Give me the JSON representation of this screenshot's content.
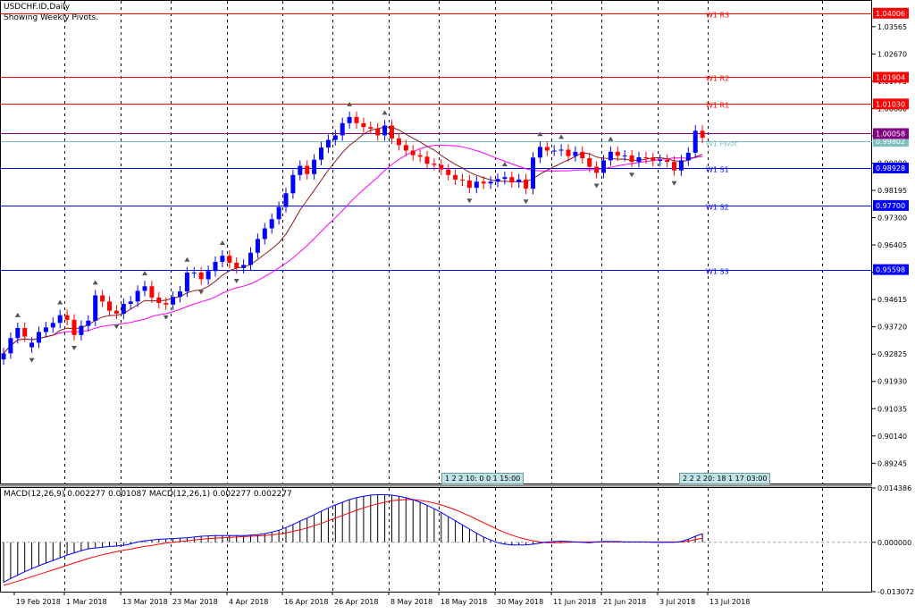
{
  "window": {
    "symbol_title": "USDCHF.ID,Daily",
    "subtitle": "Showing Weekly Pivots."
  },
  "chart_data": [
    {
      "type": "candlestick",
      "symbol": "USDCHF.ID",
      "timeframe": "Daily",
      "ylim": [
        0.8858,
        1.0441
      ],
      "y_ticks": [
        "1.03565",
        "1.02670",
        "1.01775",
        "1.00880",
        "0.99985",
        "0.99090",
        "0.98195",
        "0.97300",
        "0.96405",
        "0.95510",
        "0.94615",
        "0.93720",
        "0.92825",
        "0.91930",
        "0.91035",
        "0.90140",
        "0.89245"
      ],
      "x_ticks": [
        "19 Feb 2018",
        "1 Mar 2018",
        "13 Mar 2018",
        "23 Mar 2018",
        "4 Apr 2018",
        "16 Apr 2018",
        "26 Apr 2018",
        "8 May 2018",
        "18 May 2018",
        "30 May 2018",
        "11 Jun 2018",
        "21 Jun 2018",
        "3 Jul 2018",
        "13 Jul 2018"
      ],
      "grid": true,
      "colors": {
        "bull": "#0000ff",
        "bear": "#ff0000",
        "ma_fast": "#8b1a1a",
        "ma_slow": "#ff00ff"
      },
      "pivots": [
        {
          "label": "W1 R3",
          "value": 1.04006,
          "tag": "1.04006",
          "color": "#ff0000"
        },
        {
          "label": "W1 R2",
          "value": 1.01904,
          "tag": "1.01904",
          "color": "#ff0000"
        },
        {
          "label": "W1 R1",
          "value": 1.0103,
          "tag": "1.01030",
          "color": "#ff0000"
        },
        {
          "label": "W1 Pivot",
          "value": 0.99802,
          "tag": "0.99802",
          "color": "#7fbfbf"
        },
        {
          "label": "W1 S1",
          "value": 0.98928,
          "tag": "0.98928",
          "color": "#0000ff"
        },
        {
          "label": "W1 S2",
          "value": 0.977,
          "tag": "0.97700",
          "color": "#0000ff"
        },
        {
          "label": "W1 S3",
          "value": 0.95598,
          "tag": "0.95598",
          "color": "#0000ff"
        }
      ],
      "current_price": {
        "value": 1.00058,
        "tag": "1.00058",
        "color": "#800080"
      },
      "close": [
        0.9285,
        0.9335,
        0.9368,
        0.934,
        0.932,
        0.9355,
        0.937,
        0.9385,
        0.941,
        0.9395,
        0.9345,
        0.9375,
        0.9392,
        0.9475,
        0.9455,
        0.9425,
        0.9415,
        0.9447,
        0.9455,
        0.949,
        0.9505,
        0.9468,
        0.945,
        0.9445,
        0.947,
        0.9488,
        0.955,
        0.955,
        0.9528,
        0.9555,
        0.9585,
        0.9605,
        0.9582,
        0.9565,
        0.9575,
        0.9615,
        0.966,
        0.9695,
        0.9725,
        0.9765,
        0.981,
        0.987,
        0.99,
        0.9873,
        0.992,
        0.996,
        0.9985,
        1.0,
        1.004,
        1.006,
        1.004,
        1.0027,
        1.0022,
        1.0,
        1.0032,
        0.999,
        0.9968,
        0.995,
        0.9935,
        0.993,
        0.9907,
        0.9903,
        0.9888,
        0.987,
        0.9855,
        0.9852,
        0.9828,
        0.9848,
        0.9842,
        0.9848,
        0.9857,
        0.9863,
        0.9846,
        0.9855,
        0.9825,
        0.9927,
        0.9962,
        0.995,
        0.995,
        0.9953,
        0.9932,
        0.9946,
        0.9925,
        0.9897,
        0.9877,
        0.9918,
        0.9946,
        0.9933,
        0.9934,
        0.9913,
        0.9928,
        0.9925,
        0.9916,
        0.9919,
        0.9913,
        0.9885,
        0.9918,
        0.9943,
        1.0015,
        0.9992
      ],
      "bar_colors": [
        "bull",
        "bull",
        "bull",
        "bear",
        "bull",
        "bull",
        "bull",
        "bull",
        "bull",
        "bear",
        "bear",
        "bull",
        "bull",
        "bull",
        "bear",
        "bear",
        "bear",
        "bull",
        "bull",
        "bull",
        "bull",
        "bear",
        "bear",
        "bear",
        "bull",
        "bull",
        "bull",
        "bull",
        "bear",
        "bull",
        "bull",
        "bull",
        "bear",
        "bear",
        "bull",
        "bull",
        "bull",
        "bull",
        "bull",
        "bull",
        "bull",
        "bull",
        "bull",
        "bear",
        "bull",
        "bull",
        "bull",
        "bull",
        "bull",
        "bull",
        "bear",
        "bear",
        "bear",
        "bear",
        "bull",
        "bear",
        "bear",
        "bear",
        "bear",
        "bear",
        "bear",
        "bear",
        "bear",
        "bear",
        "bear",
        "bear",
        "bear",
        "bull",
        "bear",
        "bull",
        "bull",
        "bull",
        "bear",
        "bull",
        "bear",
        "bull",
        "bull",
        "bear",
        "bull",
        "bull",
        "bear",
        "bull",
        "bear",
        "bear",
        "bear",
        "bull",
        "bull",
        "bear",
        "bull",
        "bear",
        "bull",
        "bear",
        "bear",
        "bull",
        "bear",
        "bear",
        "bull",
        "bull",
        "bull",
        "bear"
      ],
      "session_label_1": "1 2 2 10: 0 0 1 15:00",
      "session_label_2": "2 2 2 20: 18 1 17 03:00"
    },
    {
      "type": "line",
      "title": "MACD(12,26,9) 0.002277 0.001087 MACD(12,26,1) 0.002277 0.002277",
      "ylim": [
        -0.013072,
        0.014386
      ],
      "y_ticks": [
        "0.014386",
        "0.000000",
        "-0.013072"
      ],
      "series": [
        {
          "name": "MACD(12,26,9)",
          "role": "histogram",
          "color": "#000000",
          "values": [
            -0.0106,
            -0.0096,
            -0.0087,
            -0.0078,
            -0.007,
            -0.0062,
            -0.0055,
            -0.0048,
            -0.0041,
            -0.0034,
            -0.0028,
            -0.0022,
            -0.0017,
            -0.0015,
            -0.0013,
            -0.0011,
            -0.001,
            -0.0008,
            -0.0004,
            0.0001,
            0.0004,
            0.0006,
            0.0008,
            0.0009,
            0.001,
            0.0011,
            0.0012,
            0.0014,
            0.0016,
            0.0017,
            0.0018,
            0.0018,
            0.0018,
            0.0018,
            0.0018,
            0.0019,
            0.002,
            0.0023,
            0.0027,
            0.0032,
            0.0039,
            0.0047,
            0.0056,
            0.0064,
            0.0073,
            0.0082,
            0.0091,
            0.0099,
            0.0106,
            0.0113,
            0.0118,
            0.0122,
            0.0125,
            0.0126,
            0.0126,
            0.0125,
            0.0122,
            0.0118,
            0.0113,
            0.0106,
            0.0098,
            0.0089,
            0.0079,
            0.0068,
            0.0057,
            0.0046,
            0.0035,
            0.0024,
            0.0014,
            0.0006,
            -0.0001,
            -0.0005,
            -0.0007,
            -0.0007,
            -0.0007,
            -0.0005,
            -0.0002,
            0.0001,
            0.0002,
            0.0003,
            0.0002,
            0.0001,
            0.0,
            -0.0001,
            0.0001,
            0.0002,
            0.0002,
            0.0002,
            0.0001,
            0.0001,
            0.0001,
            0.0001,
            0.0,
            0.0,
            0.0,
            0.0,
            0.0002,
            0.0008,
            0.0016,
            0.0023
          ]
        },
        {
          "name": "MACD(12,26,1)",
          "role": "line",
          "color": "#0000ff",
          "values": [
            -0.0106,
            -0.0096,
            -0.0087,
            -0.0078,
            -0.007,
            -0.0062,
            -0.0055,
            -0.0048,
            -0.0041,
            -0.0034,
            -0.0028,
            -0.0022,
            -0.0017,
            -0.0015,
            -0.0013,
            -0.0011,
            -0.001,
            -0.0008,
            -0.0004,
            0.0001,
            0.0004,
            0.0006,
            0.0008,
            0.0009,
            0.001,
            0.0011,
            0.0012,
            0.0014,
            0.0016,
            0.0017,
            0.0018,
            0.0018,
            0.0018,
            0.0018,
            0.0018,
            0.0019,
            0.002,
            0.0023,
            0.0027,
            0.0032,
            0.0039,
            0.0047,
            0.0056,
            0.0064,
            0.0073,
            0.0082,
            0.0091,
            0.0099,
            0.0106,
            0.0113,
            0.0118,
            0.0122,
            0.0125,
            0.0126,
            0.0126,
            0.0125,
            0.0122,
            0.0118,
            0.0113,
            0.0106,
            0.0098,
            0.0089,
            0.0079,
            0.0068,
            0.0057,
            0.0046,
            0.0035,
            0.0024,
            0.0014,
            0.0006,
            -0.0001,
            -0.0005,
            -0.0007,
            -0.0007,
            -0.0007,
            -0.0005,
            -0.0002,
            0.0001,
            0.0002,
            0.0003,
            0.0002,
            0.0001,
            0.0,
            -0.0001,
            0.0001,
            0.0002,
            0.0002,
            0.0002,
            0.0001,
            0.0001,
            0.0001,
            0.0001,
            0.0,
            0.0,
            0.0,
            0.0,
            0.0002,
            0.0008,
            0.0016,
            0.0023
          ]
        },
        {
          "name": "Signal",
          "role": "line",
          "color": "#ff0000",
          "values": [
            -0.0114,
            -0.0109,
            -0.0103,
            -0.0097,
            -0.0091,
            -0.0085,
            -0.0079,
            -0.0073,
            -0.0067,
            -0.0061,
            -0.0055,
            -0.0049,
            -0.0043,
            -0.0038,
            -0.0033,
            -0.0029,
            -0.0025,
            -0.0021,
            -0.0018,
            -0.0014,
            -0.0011,
            -0.0008,
            -0.0005,
            -0.0002,
            0.0,
            0.0002,
            0.0004,
            0.0006,
            0.0008,
            0.001,
            0.0011,
            0.0012,
            0.0013,
            0.0014,
            0.0015,
            0.0016,
            0.0017,
            0.0018,
            0.002,
            0.0022,
            0.0025,
            0.0029,
            0.0033,
            0.0038,
            0.0044,
            0.005,
            0.0057,
            0.0064,
            0.0071,
            0.0078,
            0.0085,
            0.0091,
            0.0097,
            0.0102,
            0.0106,
            0.011,
            0.0112,
            0.0113,
            0.0113,
            0.0111,
            0.0108,
            0.0104,
            0.0099,
            0.0093,
            0.0086,
            0.0078,
            0.007,
            0.0061,
            0.0052,
            0.0043,
            0.0034,
            0.0026,
            0.0019,
            0.0013,
            0.0008,
            0.0004,
            0.0001,
            -0.0001,
            -0.0001,
            -0.0001,
            0.0,
            0.0001,
            0.0001,
            0.0001,
            0.0001,
            0.0001,
            0.0001,
            0.0001,
            0.0001,
            0.0001,
            0.0001,
            0.0001,
            0.0001,
            0.0001,
            0.0001,
            0.0001,
            0.0001,
            0.0003,
            0.0007,
            0.0011
          ]
        }
      ]
    }
  ]
}
